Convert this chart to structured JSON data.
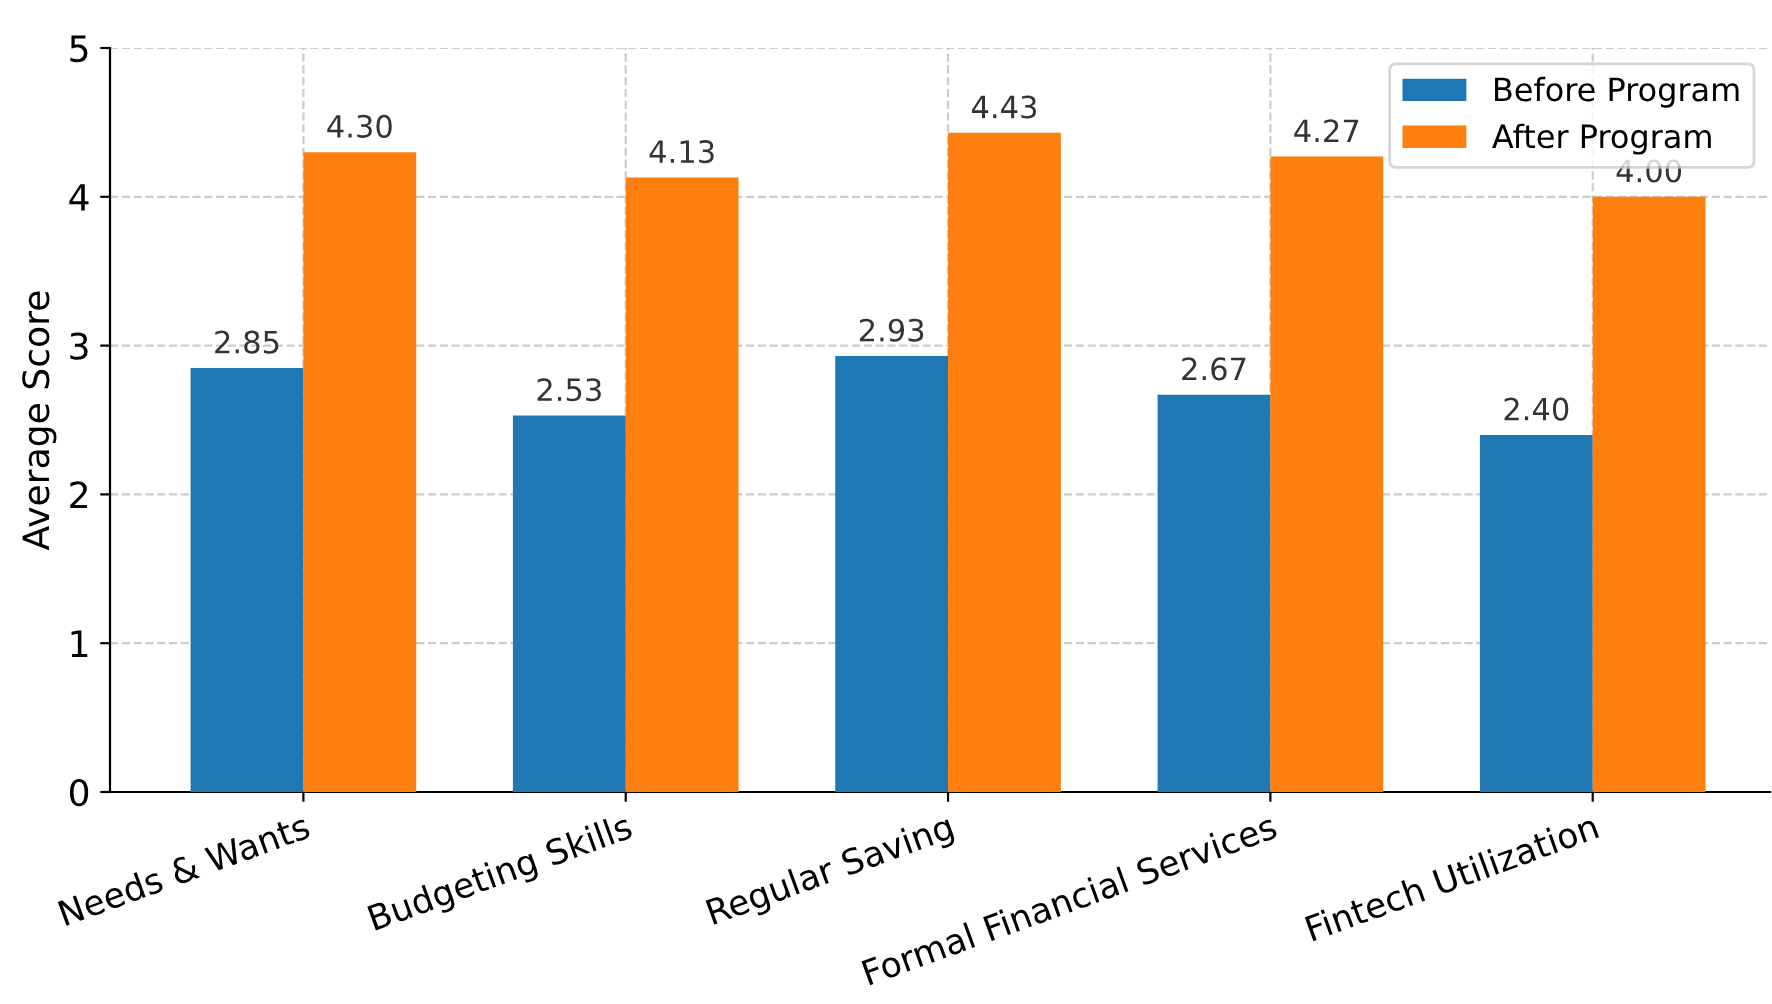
{
  "chart_data": {
    "type": "bar",
    "ylabel": "Average Score",
    "categories": [
      "Needs & Wants",
      "Budgeting Skills",
      "Regular Saving",
      "Formal Financial Services",
      "Fintech Utilization"
    ],
    "series": [
      {
        "name": "Before Program",
        "color": "#1f77b4",
        "values": [
          2.85,
          2.53,
          2.93,
          2.67,
          2.4
        ],
        "value_labels": [
          "2.85",
          "2.53",
          "2.93",
          "2.67",
          "2.40"
        ]
      },
      {
        "name": "After Program",
        "color": "#ff7f0e",
        "values": [
          4.3,
          4.13,
          4.43,
          4.27,
          4.0
        ],
        "value_labels": [
          "4.30",
          "4.13",
          "4.43",
          "4.27",
          "4.00"
        ]
      }
    ],
    "ylim": [
      0,
      5
    ],
    "yticks": [
      0,
      1,
      2,
      3,
      4,
      5
    ],
    "grid": true,
    "legend": "top right"
  }
}
